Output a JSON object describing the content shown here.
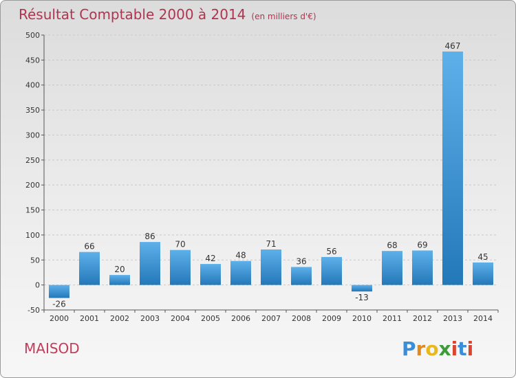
{
  "header": {
    "title": "Résultat Comptable 2000 à 2014",
    "subtitle": "(en milliers d'€)"
  },
  "commune": "MAISOD",
  "logo": {
    "text": "Proxiti"
  },
  "colors": {
    "title": "#b0344f",
    "bar_top": "#5eb0ea",
    "bar_bottom": "#2378b8"
  },
  "chart_data": {
    "type": "bar",
    "title": "Résultat Comptable 2000 à 2014",
    "subtitle": "(en milliers d'€)",
    "categories": [
      "2000",
      "2001",
      "2002",
      "2003",
      "2004",
      "2005",
      "2006",
      "2007",
      "2008",
      "2009",
      "2010",
      "2011",
      "2012",
      "2013",
      "2014"
    ],
    "values": [
      -26,
      66,
      20,
      86,
      70,
      42,
      48,
      71,
      36,
      56,
      -13,
      68,
      69,
      467,
      45
    ],
    "ylim": [
      -50,
      500
    ],
    "yticks": [
      -50,
      0,
      50,
      100,
      150,
      200,
      250,
      300,
      350,
      400,
      450,
      500
    ],
    "grid": "horizontal dashed"
  }
}
